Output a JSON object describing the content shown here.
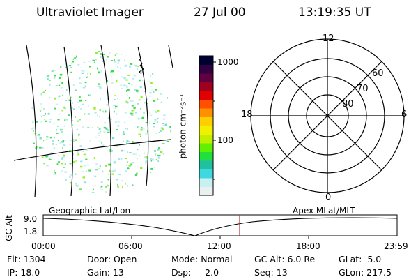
{
  "header": {
    "instrument": "Ultraviolet Imager",
    "date": "27 Jul 00",
    "time": "13:19:35 UT"
  },
  "colorbar": {
    "unit_label": "photon cm⁻²s⁻¹",
    "ticks": [
      {
        "label": "1000",
        "value": 1000
      },
      {
        "label": "100",
        "value": 100
      }
    ],
    "scale": "log",
    "range": [
      20,
      1300
    ],
    "colors": [
      "#e8f0f0",
      "#c8f0f0",
      "#40d8e0",
      "#20c0a0",
      "#20e040",
      "#60f000",
      "#c0f000",
      "#f0f000",
      "#ffd000",
      "#ff9000",
      "#ff5000",
      "#e00000",
      "#a00020",
      "#600040",
      "#300040",
      "#000030"
    ]
  },
  "polar_plot": {
    "mlt_labels": {
      "top": "12",
      "left": "18",
      "right": "6",
      "bottom": "0"
    },
    "lat_labels": [
      "60",
      "70",
      "80"
    ]
  },
  "timeline": {
    "ylabel": "GC Alt",
    "left_title": "Geographic Lat/Lon",
    "right_title": "Apex MLat/MLT",
    "y_ticks": [
      "9.0",
      "1.8"
    ],
    "x_ticks": [
      "00:00",
      "06:00",
      "12:00",
      "18:00",
      "23:59"
    ],
    "current_marker": "13:19"
  },
  "info": {
    "flt": "Flt: 1304",
    "door": "Door: Open",
    "mode": "Mode: Normal",
    "gc_alt": "GC Alt: 6.0 Re",
    "glat": "GLat:  5.0",
    "ip": "IP: 18.0",
    "gain": "Gain: 13",
    "dsp": "Dsp:     2.0",
    "seq": "Seq: 13",
    "glon": "GLon: 217.5"
  }
}
